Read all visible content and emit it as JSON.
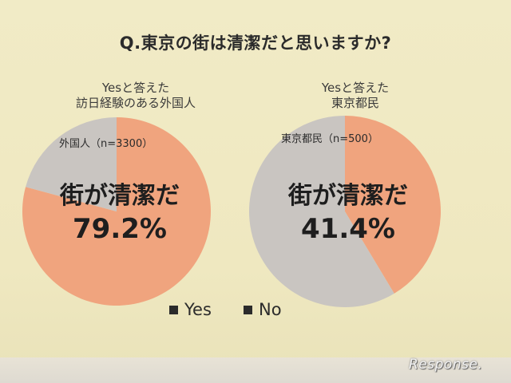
{
  "title": "Q.東京の街は清潔だと思いますか?",
  "watermark": "Response.",
  "colors": {
    "yes": "#f0a47e",
    "no": "#c9c5c1",
    "background": "#f1ebc6"
  },
  "legend": {
    "yes": "Yes",
    "no": "No"
  },
  "chart_data": [
    {
      "type": "pie",
      "caption_line1": "Yesと答えた",
      "caption_line2": "訪日経験のある外国人",
      "group_label": "外国人（n=3300）",
      "center_text": "街が清潔だ",
      "center_value": "79.2%",
      "slices": [
        {
          "name": "Yes",
          "value": 79.2
        },
        {
          "name": "No",
          "value": 20.8
        }
      ]
    },
    {
      "type": "pie",
      "caption_line1": "Yesと答えた",
      "caption_line2": "東京都民",
      "group_label": "東京都民（n=500）",
      "center_text": "街が清潔だ",
      "center_value": "41.4%",
      "slices": [
        {
          "name": "Yes",
          "value": 41.4
        },
        {
          "name": "No",
          "value": 58.6
        }
      ]
    }
  ]
}
